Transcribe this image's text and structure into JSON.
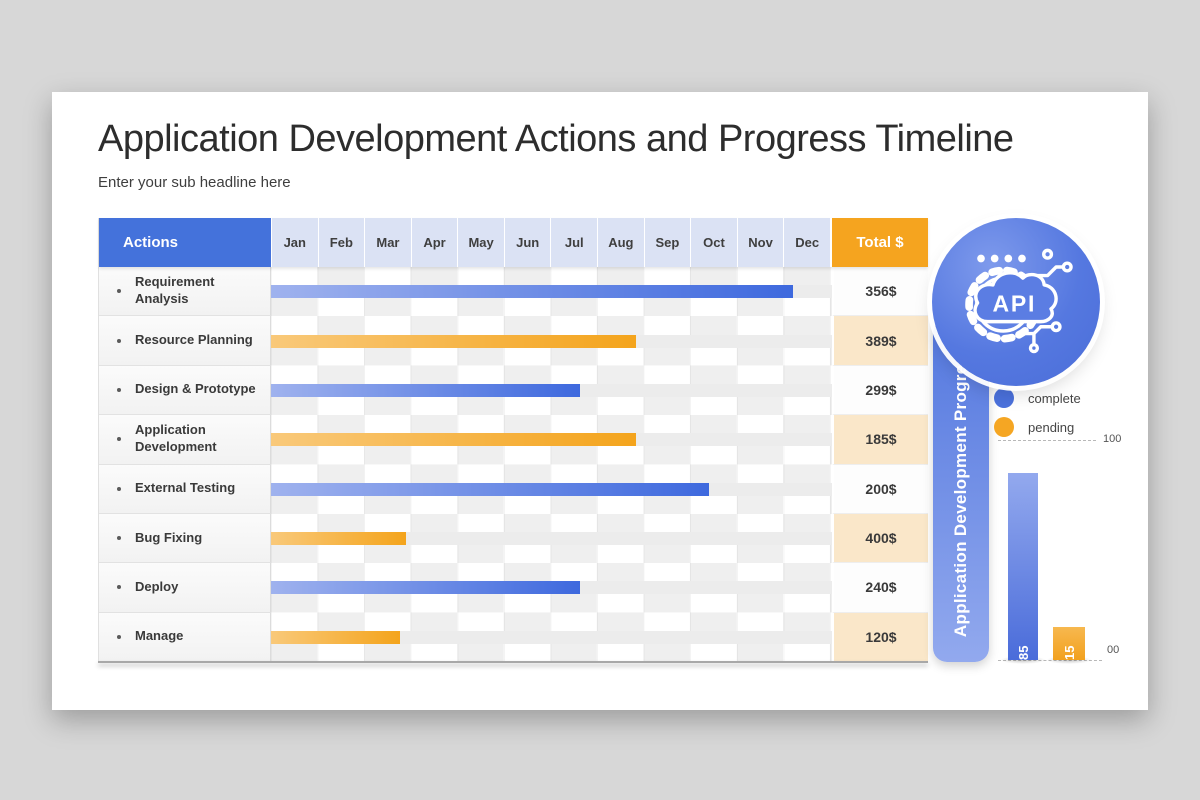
{
  "slide": {
    "title": "Application Development Actions and Progress Timeline",
    "subtitle": "Enter your sub headline here"
  },
  "table": {
    "actions_header": "Actions",
    "months": [
      "Jan",
      "Feb",
      "Mar",
      "Apr",
      "May",
      "Jun",
      "Jul",
      "Aug",
      "Sep",
      "Oct",
      "Nov",
      "Dec"
    ],
    "total_header": "Total $",
    "rows": [
      {
        "label": "Requirement Analysis",
        "status": "complete",
        "bar_pct": 93,
        "total": "356$"
      },
      {
        "label": "Resource Planning",
        "status": "pending",
        "bar_pct": 65,
        "total": "389$"
      },
      {
        "label": "Design & Prototype",
        "status": "complete",
        "bar_pct": 55,
        "total": "299$"
      },
      {
        "label": "Application Development",
        "status": "pending",
        "bar_pct": 65,
        "total": "185$"
      },
      {
        "label": "External Testing",
        "status": "complete",
        "bar_pct": 78,
        "total": "200$"
      },
      {
        "label": "Bug Fixing",
        "status": "pending",
        "bar_pct": 24,
        "total": "400$"
      },
      {
        "label": "Deploy",
        "status": "complete",
        "bar_pct": 55,
        "total": "240$"
      },
      {
        "label": "Manage",
        "status": "pending",
        "bar_pct": 23,
        "total": "120$"
      }
    ]
  },
  "side_panel": {
    "badge_text": "API",
    "ribbon_text": "Application Development Progress",
    "legend": [
      {
        "label": "complete",
        "color": "#4b71dc"
      },
      {
        "label": "pending",
        "color": "#f5a623"
      }
    ],
    "mini_chart": {
      "max_label": "100",
      "min_label": "00",
      "bars": [
        {
          "label": "85",
          "value": 85,
          "status": "complete"
        },
        {
          "label": "15",
          "value": 15,
          "status": "pending"
        }
      ]
    }
  },
  "colors": {
    "header_blue": "#4472db",
    "header_orange": "#f5a41f",
    "month_header_bg": "#dbe2f4",
    "bar_blue": "#3e69de",
    "bar_orange": "#f4a41c",
    "total_cream": "#fae7c9"
  },
  "chart_data": [
    {
      "type": "bar",
      "subtype": "gantt-horizontal",
      "title": "Application Development Actions and Progress Timeline",
      "x_axis_months": [
        "Jan",
        "Feb",
        "Mar",
        "Apr",
        "May",
        "Jun",
        "Jul",
        "Aug",
        "Sep",
        "Oct",
        "Nov",
        "Dec"
      ],
      "categories": [
        "Requirement Analysis",
        "Resource Planning",
        "Design & Prototype",
        "Application Development",
        "External Testing",
        "Bug Fixing",
        "Deploy",
        "Manage"
      ],
      "series": [
        {
          "name": "duration_months_from_Jan",
          "values": [
            11.1,
            7.8,
            6.6,
            7.8,
            9.4,
            2.9,
            6.6,
            2.7
          ]
        }
      ],
      "bar_status": [
        "complete",
        "pending",
        "complete",
        "pending",
        "complete",
        "pending",
        "complete",
        "pending"
      ],
      "totals_dollars": [
        "356$",
        "389$",
        "299$",
        "185$",
        "200$",
        "400$",
        "240$",
        "120$"
      ],
      "legend_entries": [
        "complete",
        "pending"
      ],
      "grid": true,
      "legend_position": "right"
    },
    {
      "type": "bar",
      "title": "Application Development Progress",
      "categories": [
        "complete",
        "pending"
      ],
      "values": [
        85,
        15
      ],
      "ylim": [
        0,
        100
      ],
      "tick_labels": [
        "100",
        "00"
      ],
      "grid": false
    }
  ]
}
